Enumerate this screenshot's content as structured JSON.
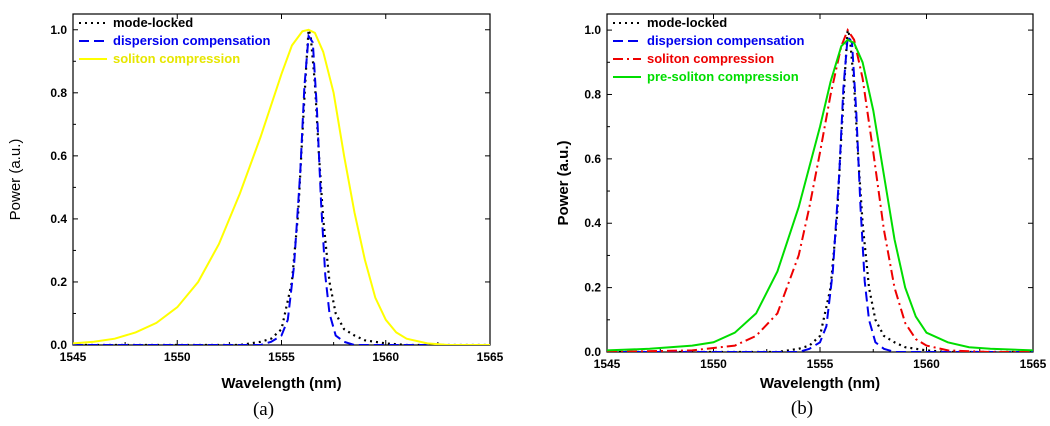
{
  "chart_data": [
    {
      "type": "line",
      "caption": "(a)",
      "xlabel": "Wavelength (nm)",
      "ylabel": "Power (a.u.)",
      "xlim": [
        1545,
        1565
      ],
      "ylim": [
        0,
        1.05
      ],
      "xticks": [
        1545,
        1550,
        1555,
        1560,
        1565
      ],
      "yticks": [
        "0.0",
        "0.2",
        "0.4",
        "0.6",
        "0.8",
        "1.0"
      ],
      "legend_position": "top-left",
      "series": [
        {
          "name": "mode-locked",
          "color": "#000000",
          "dash": "dotted",
          "x": [
            1545,
            1553,
            1554,
            1554.5,
            1555,
            1555.5,
            1555.8,
            1556,
            1556.2,
            1556.3,
            1556.4,
            1556.6,
            1556.8,
            1557,
            1557.3,
            1557.6,
            1558,
            1558.5,
            1559,
            1560,
            1561,
            1565
          ],
          "y": [
            0,
            0,
            0.01,
            0.02,
            0.05,
            0.2,
            0.42,
            0.67,
            0.9,
            1.0,
            0.98,
            0.83,
            0.6,
            0.4,
            0.2,
            0.1,
            0.05,
            0.03,
            0.015,
            0.005,
            0,
            0
          ]
        },
        {
          "name": "dispersion compensation",
          "color": "#0000ee",
          "dash": "dashed",
          "x": [
            1545,
            1554,
            1554.5,
            1555,
            1555.3,
            1555.6,
            1555.9,
            1556.1,
            1556.3,
            1556.5,
            1556.7,
            1556.9,
            1557.1,
            1557.3,
            1557.6,
            1558,
            1558.5,
            1565
          ],
          "y": [
            0,
            0,
            0.01,
            0.03,
            0.08,
            0.25,
            0.55,
            0.82,
            0.98,
            0.96,
            0.75,
            0.45,
            0.22,
            0.1,
            0.03,
            0.01,
            0,
            0
          ]
        },
        {
          "name": "soliton compression",
          "color": "#ffff00",
          "dash": "solid",
          "x": [
            1545,
            1546,
            1547,
            1548,
            1549,
            1550,
            1551,
            1552,
            1553,
            1554,
            1555,
            1555.5,
            1556,
            1556.3,
            1556.6,
            1557,
            1557.5,
            1558,
            1558.5,
            1559,
            1559.5,
            1560,
            1560.5,
            1561,
            1562,
            1563,
            1565
          ],
          "y": [
            0.005,
            0.01,
            0.02,
            0.04,
            0.07,
            0.12,
            0.2,
            0.32,
            0.48,
            0.66,
            0.86,
            0.95,
            0.995,
            1.0,
            0.99,
            0.93,
            0.8,
            0.6,
            0.42,
            0.27,
            0.15,
            0.08,
            0.04,
            0.02,
            0.005,
            0,
            0
          ]
        }
      ]
    },
    {
      "type": "line",
      "caption": "(b)",
      "xlabel": "Wavelength (nm)",
      "ylabel": "Power (a.u.)",
      "xlim": [
        1545,
        1565
      ],
      "ylim": [
        0,
        1.05
      ],
      "xticks": [
        1545,
        1550,
        1555,
        1560,
        1565
      ],
      "yticks": [
        "0.0",
        "0.2",
        "0.4",
        "0.6",
        "0.8",
        "1.0"
      ],
      "legend_position": "top-left",
      "series": [
        {
          "name": "mode-locked",
          "color": "#000000",
          "dash": "dotted",
          "x": [
            1545,
            1553,
            1554,
            1554.5,
            1555,
            1555.5,
            1555.8,
            1556,
            1556.2,
            1556.3,
            1556.4,
            1556.6,
            1556.8,
            1557,
            1557.3,
            1557.6,
            1558,
            1558.5,
            1559,
            1560,
            1561,
            1565
          ],
          "y": [
            0,
            0,
            0.01,
            0.02,
            0.05,
            0.2,
            0.42,
            0.67,
            0.9,
            1.0,
            0.98,
            0.83,
            0.6,
            0.4,
            0.2,
            0.1,
            0.05,
            0.03,
            0.015,
            0.005,
            0,
            0
          ]
        },
        {
          "name": "dispersion compensation",
          "color": "#0000ee",
          "dash": "dashed",
          "x": [
            1545,
            1554,
            1554.5,
            1555,
            1555.3,
            1555.6,
            1555.9,
            1556.1,
            1556.3,
            1556.5,
            1556.7,
            1556.9,
            1557.1,
            1557.3,
            1557.6,
            1558,
            1558.5,
            1565
          ],
          "y": [
            0,
            0,
            0.01,
            0.03,
            0.08,
            0.25,
            0.55,
            0.82,
            0.98,
            0.96,
            0.75,
            0.45,
            0.22,
            0.1,
            0.03,
            0.01,
            0,
            0
          ]
        },
        {
          "name": "soliton compression",
          "color": "#ee0000",
          "dash": "dashdot",
          "x": [
            1545,
            1549,
            1551,
            1552,
            1553,
            1554,
            1554.5,
            1555,
            1555.5,
            1556,
            1556.3,
            1556.6,
            1557,
            1557.5,
            1558,
            1558.5,
            1559,
            1559.5,
            1560,
            1561,
            1563,
            1565
          ],
          "y": [
            0,
            0.005,
            0.02,
            0.05,
            0.12,
            0.3,
            0.45,
            0.62,
            0.8,
            0.95,
            1.0,
            0.97,
            0.85,
            0.62,
            0.38,
            0.2,
            0.09,
            0.04,
            0.02,
            0.005,
            0,
            0
          ]
        },
        {
          "name": "pre-soliton compression",
          "color": "#00dd00",
          "dash": "solid",
          "x": [
            1545,
            1547,
            1549,
            1550,
            1551,
            1552,
            1553,
            1554,
            1555,
            1555.5,
            1556,
            1556.3,
            1556.6,
            1557,
            1557.5,
            1558,
            1558.5,
            1559,
            1559.5,
            1560,
            1561,
            1562,
            1563,
            1565
          ],
          "y": [
            0.005,
            0.01,
            0.02,
            0.03,
            0.06,
            0.12,
            0.25,
            0.45,
            0.7,
            0.84,
            0.95,
            0.97,
            0.96,
            0.9,
            0.75,
            0.55,
            0.35,
            0.2,
            0.11,
            0.06,
            0.03,
            0.015,
            0.01,
            0.005
          ]
        }
      ]
    }
  ]
}
